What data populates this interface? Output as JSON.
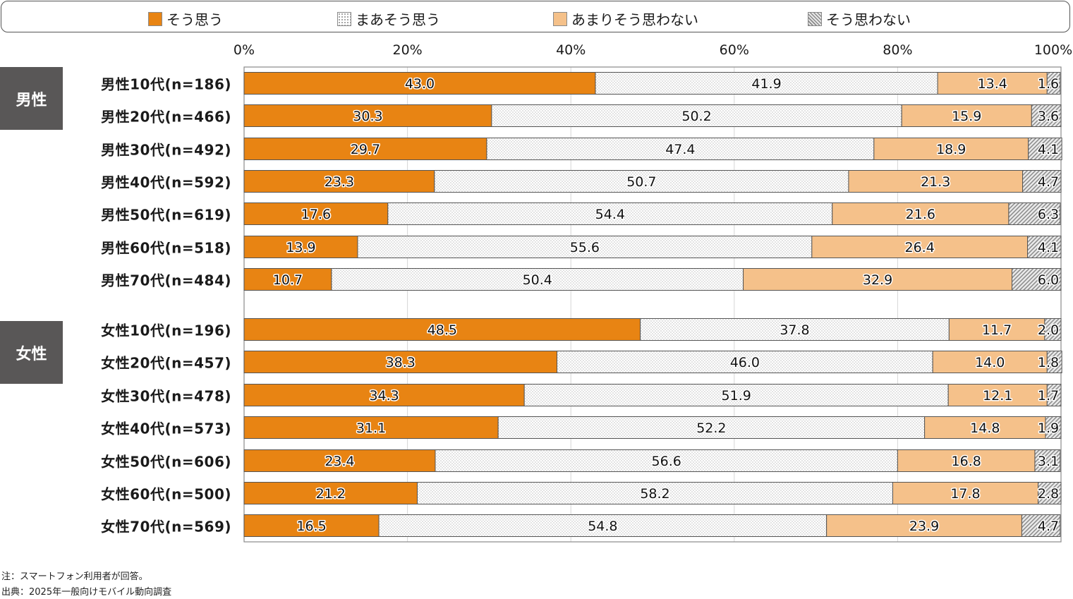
{
  "chart_data": {
    "type": "bar",
    "orientation": "horizontal",
    "stacked": true,
    "xlim": [
      0,
      100
    ],
    "x_ticks": [
      "0%",
      "20%",
      "40%",
      "60%",
      "80%",
      "100%"
    ],
    "legend": [
      "そう思う",
      "まあそう思う",
      "あまりそう思わない",
      "そう思わない"
    ],
    "legend_position": "top",
    "grid": true,
    "groups": [
      {
        "label": "男性",
        "categories": [
          "男性10代(n=186)",
          "男性20代(n=466)",
          "男性30代(n=492)",
          "男性40代(n=592)",
          "男性50代(n=619)",
          "男性60代(n=518)",
          "男性70代(n=484)"
        ]
      },
      {
        "label": "女性",
        "categories": [
          "女性10代(n=196)",
          "女性20代(n=457)",
          "女性30代(n=478)",
          "女性40代(n=573)",
          "女性50代(n=606)",
          "女性60代(n=500)",
          "女性70代(n=569)"
        ]
      }
    ],
    "categories": [
      "男性10代(n=186)",
      "男性20代(n=466)",
      "男性30代(n=492)",
      "男性40代(n=592)",
      "男性50代(n=619)",
      "男性60代(n=518)",
      "男性70代(n=484)",
      "女性10代(n=196)",
      "女性20代(n=457)",
      "女性30代(n=478)",
      "女性40代(n=573)",
      "女性50代(n=606)",
      "女性60代(n=500)",
      "女性70代(n=569)"
    ],
    "series": [
      {
        "name": "そう思う",
        "color": "#E88413",
        "pattern": "solid",
        "values": [
          43.0,
          30.3,
          29.7,
          23.3,
          17.6,
          13.9,
          10.7,
          48.5,
          38.3,
          34.3,
          31.1,
          23.4,
          21.2,
          16.5
        ]
      },
      {
        "name": "まあそう思う",
        "color": "#FFFFFF",
        "pattern": "dots",
        "values": [
          41.9,
          50.2,
          47.4,
          50.7,
          54.4,
          55.6,
          50.4,
          37.8,
          46.0,
          51.9,
          52.2,
          56.6,
          58.2,
          54.8
        ]
      },
      {
        "name": "あまりそう思わない",
        "color": "#F5C18A",
        "pattern": "solid",
        "values": [
          13.4,
          15.9,
          18.9,
          21.3,
          21.6,
          26.4,
          32.9,
          11.7,
          14.0,
          12.1,
          14.8,
          16.8,
          17.8,
          23.9
        ]
      },
      {
        "name": "そう思わない",
        "color": "#D0D0D0",
        "pattern": "hatch",
        "values": [
          1.6,
          3.6,
          4.1,
          4.7,
          6.3,
          4.1,
          6.0,
          2.0,
          1.8,
          1.7,
          1.9,
          3.1,
          2.8,
          4.7
        ]
      }
    ]
  },
  "notes": {
    "note": "注：スマートフォン利用者が回答。",
    "source": "出典：2025年一般向けモバイル動向調査"
  }
}
